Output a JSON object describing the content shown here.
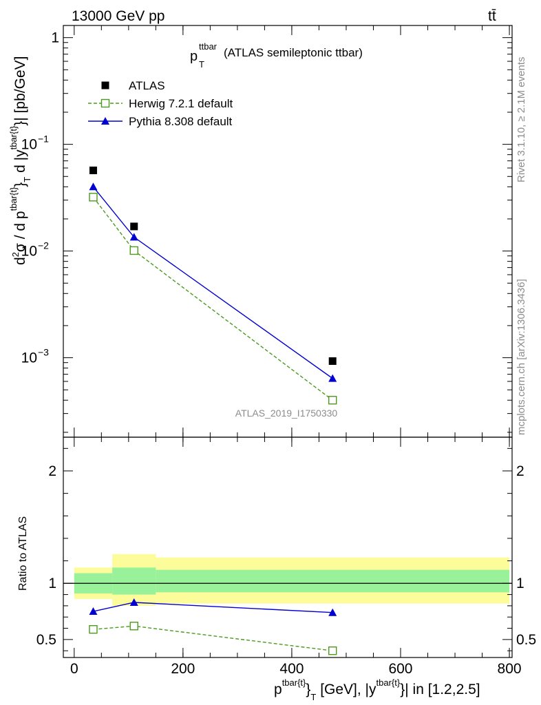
{
  "header": {
    "left": "13000 GeV pp",
    "right": "tt̄"
  },
  "side_labels": {
    "rivet": "Rivet 3.1.10, ≥ 2.1M events",
    "mcplots": "mcplots.cern.ch [arXiv:1306.3436]"
  },
  "chart_data": [
    {
      "type": "line",
      "title_main": "p",
      "title_sub": "T",
      "title_sup": "ttbar",
      "title_rest": "(ATLAS semileptonic ttbar)",
      "analysis_id": "ATLAS_2019_I1750330",
      "ylabel_html": "d²σ / d p^{tbar{t}}_T d |y^{tbar{t}}| [pb/GeV]",
      "ylabel_parts": {
        "a": "d",
        "a_sup": "2",
        "b": "σ /  d p",
        "b_sup": "tbar{t}",
        "c": "}",
        "c_sub": "T",
        "d": " d |y",
        "d_sup": "tbar{t}",
        "e": "}| [pb/GeV]"
      },
      "y_scale": "log",
      "ylim": [
        0.00018,
        1.3
      ],
      "y_ticks": [
        {
          "value": 1,
          "base": "1",
          "exp": ""
        },
        {
          "value": 0.1,
          "base": "10",
          "exp": "−1"
        },
        {
          "value": 0.01,
          "base": "10",
          "exp": "−2"
        },
        {
          "value": 0.001,
          "base": "10",
          "exp": "−3"
        }
      ],
      "legend_position": "top-left",
      "series": [
        {
          "name": "ATLAS",
          "marker": "square-filled",
          "color": "#000000",
          "line": "none",
          "x": [
            35,
            110,
            475
          ],
          "y": [
            0.057,
            0.017,
            0.00093
          ]
        },
        {
          "name": "Herwig 7.2.1 default",
          "marker": "square-open",
          "color": "#4a9a1c",
          "line": "dashed",
          "x": [
            35,
            110,
            475
          ],
          "y": [
            0.032,
            0.0101,
            0.0004
          ]
        },
        {
          "name": "Pythia 8.308 default",
          "marker": "triangle-filled",
          "color": "#0000d0",
          "line": "solid",
          "x": [
            35,
            110,
            475
          ],
          "y": [
            0.04,
            0.0135,
            0.00064
          ]
        }
      ]
    },
    {
      "type": "line",
      "ylabel": "Ratio to ATLAS",
      "xlabel_parts": {
        "a": "p",
        "a_sup": "tbar{t}",
        "b": "}",
        "b_sub": "T",
        "c": " [GeV], |y",
        "c_sup": "tbar{t}",
        "d": "}| in [1.2,2.5]"
      },
      "xlim": [
        -20,
        805
      ],
      "ylim": [
        0.34,
        2.3
      ],
      "x_ticks": [
        "0",
        "200",
        "400",
        "600",
        "800"
      ],
      "x_tick_values": [
        0,
        200,
        400,
        600,
        800
      ],
      "y_ticks": [
        "0.5",
        "1",
        "2"
      ],
      "y_tick_values": [
        0.5,
        1,
        2
      ],
      "bands": [
        {
          "x0": 0,
          "x1": 70,
          "inner": [
            0.91,
            1.09
          ],
          "outer": [
            0.86,
            1.14
          ]
        },
        {
          "x0": 70,
          "x1": 150,
          "inner": [
            0.9,
            1.14
          ],
          "outer": [
            0.8,
            1.26
          ]
        },
        {
          "x0": 150,
          "x1": 800,
          "inner": [
            0.92,
            1.12
          ],
          "outer": [
            0.82,
            1.23
          ]
        }
      ],
      "band_colors": {
        "inner": "#99f299",
        "outer": "#fcfc9a"
      },
      "series": [
        {
          "name": "Herwig 7.2.1 default",
          "marker": "square-open",
          "color": "#4a9a1c",
          "line": "dashed",
          "x": [
            35,
            110,
            475
          ],
          "y": [
            0.59,
            0.62,
            0.4
          ]
        },
        {
          "name": "Pythia 8.308 default",
          "marker": "triangle-filled",
          "color": "#0000d0",
          "line": "solid",
          "x": [
            35,
            110,
            475
          ],
          "y": [
            0.75,
            0.83,
            0.74
          ]
        }
      ]
    }
  ]
}
